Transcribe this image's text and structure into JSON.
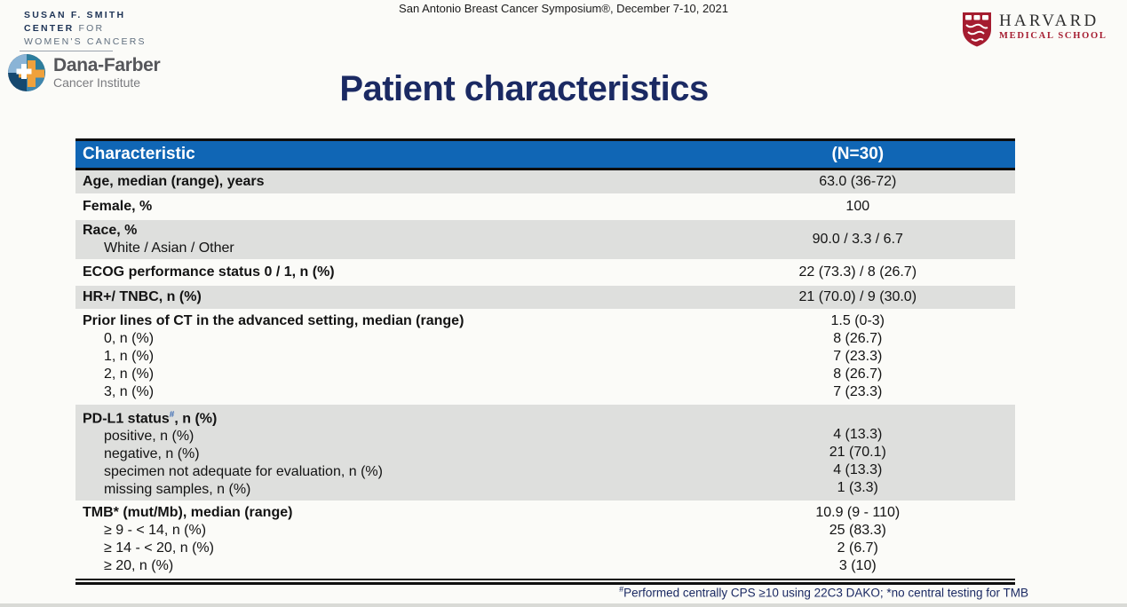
{
  "colors": {
    "header_bg": "#1066b5",
    "row_gray": "#dedfdd",
    "navy": "#1b2a63",
    "crimson": "#a51c30",
    "dfci_orange": "#efa13c",
    "dfci_navy": "#15486f"
  },
  "header": {
    "symposium": "San Antonio Breast Cancer Symposium®, December 7-10, 2021",
    "susan_smith": {
      "line1": "SUSAN F. SMITH",
      "line2_bold": "CENTER",
      "line2_rest": "FOR",
      "line3": "WOMEN'S CANCERS"
    },
    "dana_farber": {
      "name": "Dana-Farber",
      "sub": "Cancer Institute"
    },
    "harvard": {
      "name": "HARVARD",
      "sub": "MEDICAL SCHOOL"
    }
  },
  "title": "Patient characteristics",
  "table": {
    "header": {
      "characteristic": "Characteristic",
      "n": "(N=30)"
    },
    "rows": [
      {
        "shade": "gray",
        "lines": [
          {
            "t": "Age, median (range), years",
            "b": true
          }
        ],
        "values": [
          "63.0 (36-72)"
        ]
      },
      {
        "shade": "white",
        "lines": [
          {
            "t": "Female, %",
            "b": true
          }
        ],
        "values": [
          "100"
        ]
      },
      {
        "shade": "gray",
        "lines": [
          {
            "t": "Race, %",
            "b": true
          },
          {
            "t": "White / Asian / Other",
            "ind": true
          }
        ],
        "values": [
          "90.0 / 3.3 / 6.7"
        ]
      },
      {
        "shade": "white",
        "lines": [
          {
            "t": "ECOG performance status 0 / 1, n (%)",
            "b": true
          }
        ],
        "values": [
          "22 (73.3) / 8 (26.7)"
        ]
      },
      {
        "shade": "gray",
        "lines": [
          {
            "t": "HR+/ TNBC, n (%)",
            "b": true
          }
        ],
        "values": [
          "21 (70.0) / 9 (30.0)"
        ]
      },
      {
        "shade": "white",
        "lines": [
          {
            "t": "Prior lines of CT in the advanced setting, median (range)",
            "b": true
          },
          {
            "t": "0, n (%)",
            "ind": true
          },
          {
            "t": "1, n (%)",
            "ind": true
          },
          {
            "t": "2, n (%)",
            "ind": true
          },
          {
            "t": "3, n (%)",
            "ind": true
          }
        ],
        "values": [
          "1.5 (0-3)",
          "8 (26.7)",
          "7 (23.3)",
          "8 (26.7)",
          "7 (23.3)"
        ]
      },
      {
        "shade": "gray",
        "lines": [
          {
            "t": "PD-L1 status",
            "sup": "#",
            "after": ", n (%)",
            "b": true
          },
          {
            "t": "positive, n (%)",
            "ind": true
          },
          {
            "t": "negative, n (%)",
            "ind": true
          },
          {
            "t": "specimen not adequate for evaluation, n (%)",
            "ind": true
          },
          {
            "t": "missing samples, n (%)",
            "ind": true
          }
        ],
        "values": [
          "",
          "4 (13.3)",
          "21 (70.1)",
          "4 (13.3)",
          "1 (3.3)"
        ]
      },
      {
        "shade": "white",
        "lines": [
          {
            "t": "TMB* (mut/Mb), median (range)",
            "b": true
          },
          {
            "t": "≥ 9 - < 14, n (%)",
            "ind": true
          },
          {
            "t": "≥ 14 - < 20, n (%)",
            "ind": true
          },
          {
            "t": "≥ 20, n (%)",
            "ind": true
          }
        ],
        "values": [
          "10.9 (9 - 110)",
          "25 (83.3)",
          "2 (6.7)",
          "3 (10)"
        ]
      }
    ]
  },
  "footnote": {
    "sup": "#",
    "text": "Performed centrally CPS ≥10 using 22C3 DAKO; *no central testing for TMB"
  }
}
